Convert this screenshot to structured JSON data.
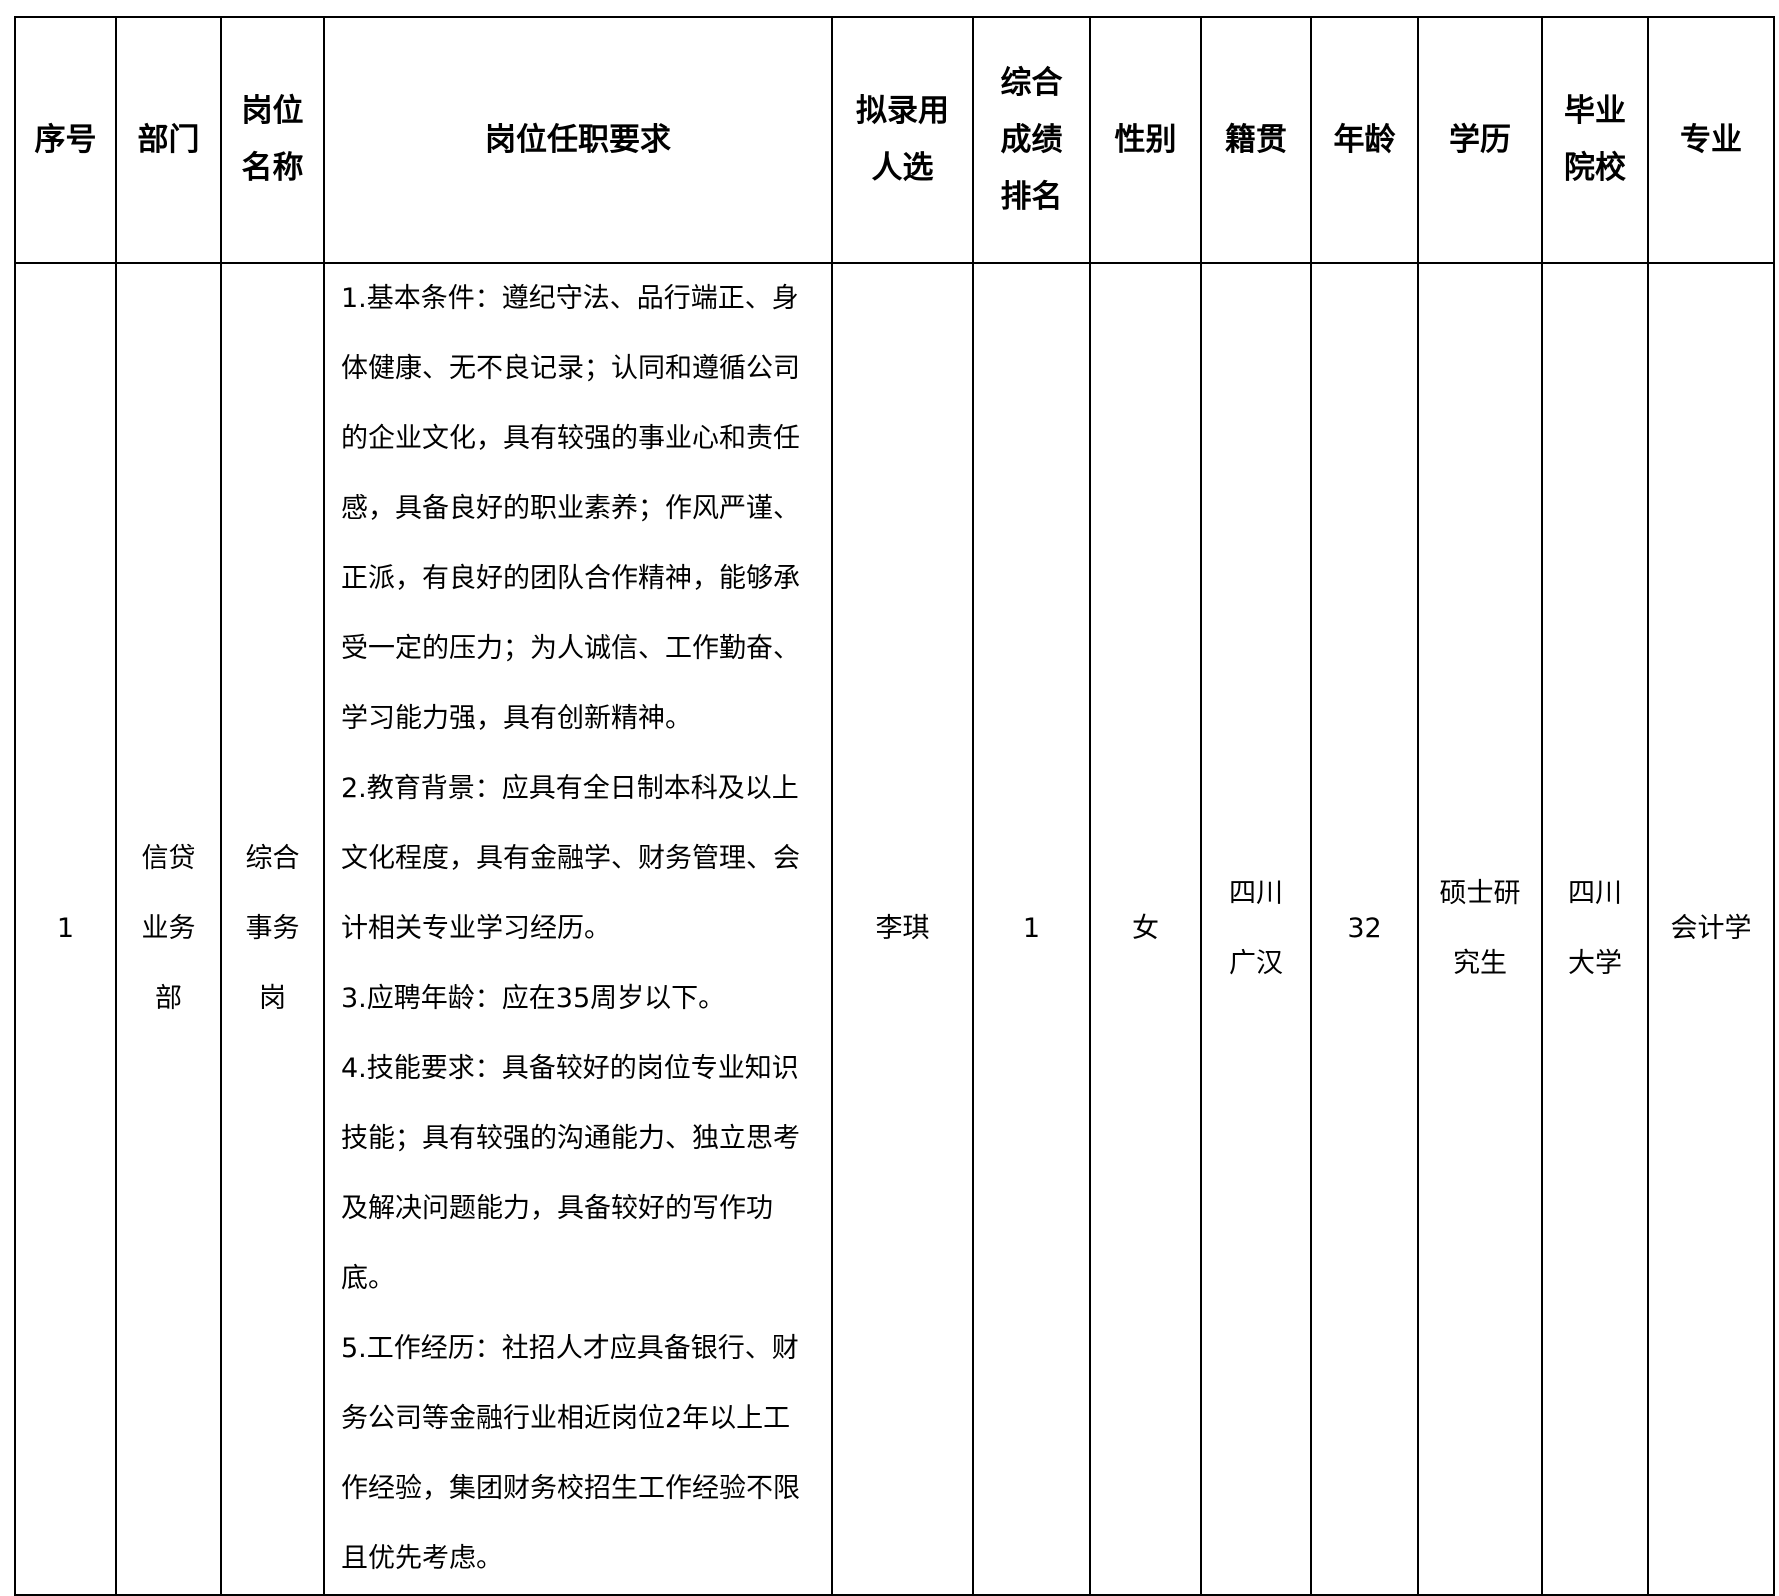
{
  "headers": [
    "序号",
    "部门",
    "岗位\n名称",
    "岗位任职要求",
    "拟录用\n人选",
    "综合\n成绩\n排名",
    "性别",
    "籍贯",
    "年龄",
    "学历",
    "毕业\n院校",
    "专业"
  ],
  "row": {
    "index": "1",
    "department": [
      "信贷",
      "业务",
      "部"
    ],
    "position": [
      "综合",
      "事务",
      "岗"
    ],
    "requirements": [
      "1.基本条件：遵纪守法、品行端正、身体健康、无不良记录；认同和遵循公司的企业文化，具有较强的事业心和责任感，具备良好的职业素养；作风严谨、正派，有良好的团队合作精神，能够承受一定的压力；为人诚信、工作勤奋、学习能力强，具有创新精神。",
      "2.教育背景：应具有全日制本科及以上文化程度，具有金融学、财务管理、会计相关专业学习经历。",
      "3.应聘年龄：应在35周岁以下。",
      "4.技能要求：具备较好的岗位专业知识技能；具有较强的沟通能力、独立思考及解决问题能力，具备较好的写作功底。",
      "5.工作经历：社招人才应具备银行、财务公司等金融行业相近岗位2年以上工作经验，集团财务校招生工作经验不限且优先考虑。"
    ],
    "candidate": "李琪",
    "rank": "1",
    "gender": "女",
    "hometown": [
      "四川",
      "广汉"
    ],
    "age": "32",
    "education": [
      "硕士研",
      "究生"
    ],
    "school": [
      "四川",
      "大学"
    ],
    "major": "会计学"
  }
}
